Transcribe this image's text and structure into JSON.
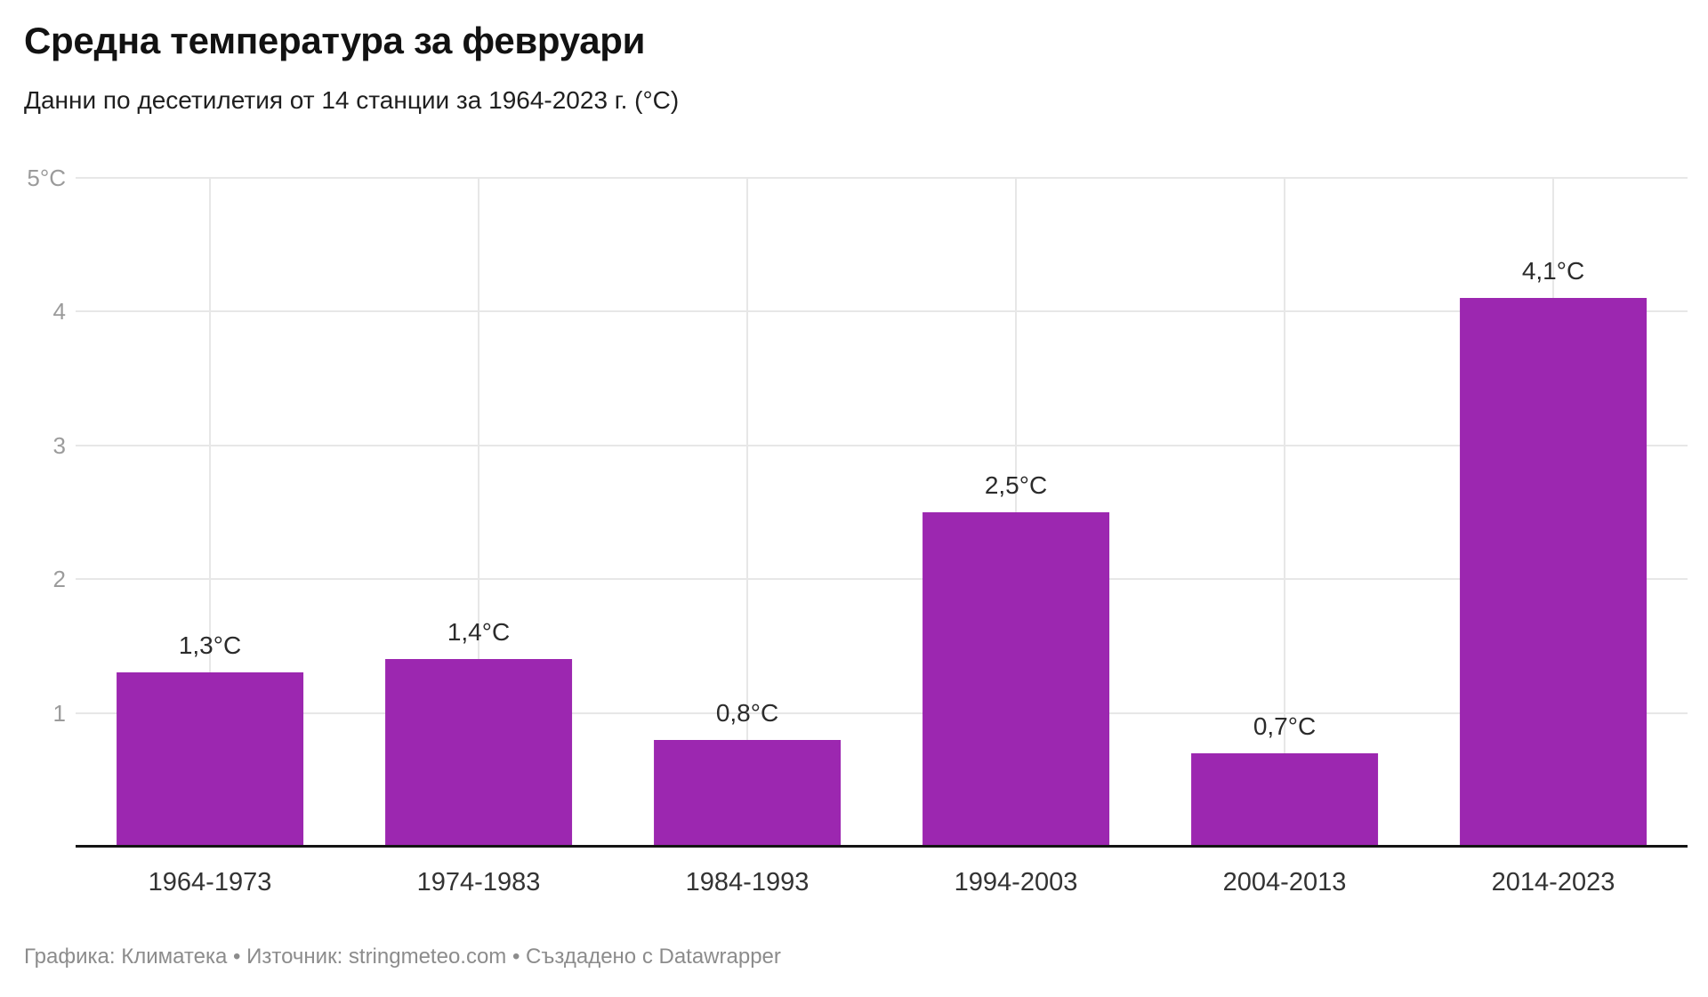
{
  "header": {
    "title": "Средна температура за февруари",
    "subtitle": "Данни по десетилетия от 14 станции за 1964-2023 г. (°C)"
  },
  "chart_data": {
    "type": "bar",
    "title": "Средна температура за февруари",
    "subtitle": "Данни по десетилетия от 14 станции за 1964-2023 г. (°C)",
    "categories": [
      "1964-1973",
      "1974-1983",
      "1984-1993",
      "1994-2003",
      "2004-2013",
      "2014-2023"
    ],
    "values": [
      1.3,
      1.4,
      0.8,
      2.5,
      0.7,
      4.1
    ],
    "value_labels": [
      "1,3°C",
      "1,4°C",
      "0,8°C",
      "2,5°C",
      "0,7°C",
      "4,1°C"
    ],
    "xlabel": "",
    "ylabel": "°C",
    "ylim": [
      0,
      5
    ],
    "yticks": [
      1,
      2,
      3,
      4,
      5
    ],
    "ytick_labels": [
      "1",
      "2",
      "3",
      "4",
      "5°C"
    ],
    "grid": "horizontal gridlines at integers, vertical gridline at each category center",
    "legend": "none",
    "bar_color": "#9c27b0"
  },
  "footer": {
    "text": "Графика: Климатека • Източник: stringmeteo.com • Създадено с Datawrapper"
  }
}
